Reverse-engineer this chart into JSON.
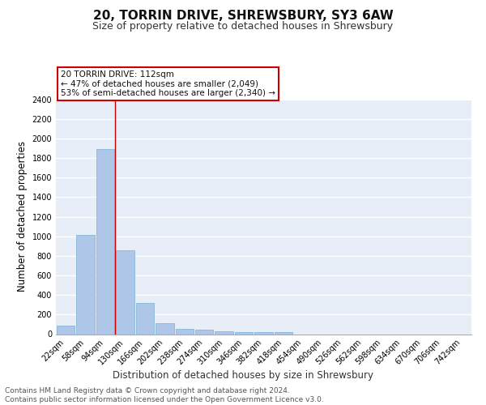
{
  "title1": "20, TORRIN DRIVE, SHREWSBURY, SY3 6AW",
  "title2": "Size of property relative to detached houses in Shrewsbury",
  "xlabel": "Distribution of detached houses by size in Shrewsbury",
  "ylabel": "Number of detached properties",
  "categories": [
    "22sqm",
    "58sqm",
    "94sqm",
    "130sqm",
    "166sqm",
    "202sqm",
    "238sqm",
    "274sqm",
    "310sqm",
    "346sqm",
    "382sqm",
    "418sqm",
    "454sqm",
    "490sqm",
    "526sqm",
    "562sqm",
    "598sqm",
    "634sqm",
    "670sqm",
    "706sqm",
    "742sqm"
  ],
  "values": [
    90,
    1010,
    1890,
    860,
    320,
    110,
    55,
    45,
    30,
    20,
    20,
    20,
    0,
    0,
    0,
    0,
    0,
    0,
    0,
    0,
    0
  ],
  "bar_color": "#aec6e8",
  "bar_edge_color": "#7aafd4",
  "background_color": "#e8eef8",
  "grid_color": "#ffffff",
  "red_line_x": 2.5,
  "annotation_text": "20 TORRIN DRIVE: 112sqm\n← 47% of detached houses are smaller (2,049)\n53% of semi-detached houses are larger (2,340) →",
  "annotation_box_color": "#ffffff",
  "annotation_box_edge": "#cc0000",
  "ylim": [
    0,
    2400
  ],
  "yticks": [
    0,
    200,
    400,
    600,
    800,
    1000,
    1200,
    1400,
    1600,
    1800,
    2000,
    2200,
    2400
  ],
  "footer_text": "Contains HM Land Registry data © Crown copyright and database right 2024.\nContains public sector information licensed under the Open Government Licence v3.0.",
  "title1_fontsize": 11,
  "title2_fontsize": 9,
  "xlabel_fontsize": 8.5,
  "ylabel_fontsize": 8.5,
  "tick_fontsize": 7,
  "footer_fontsize": 6.5,
  "ann_fontsize": 7.5
}
